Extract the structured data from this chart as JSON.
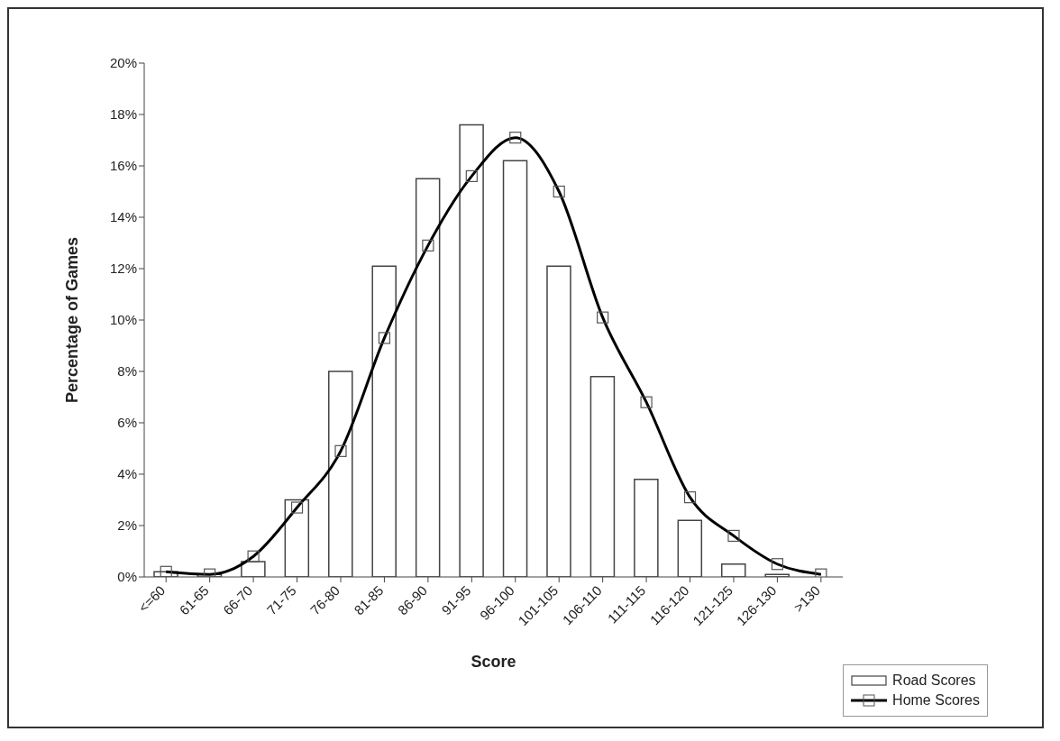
{
  "chart_data": {
    "type": "bar",
    "xlabel": "Score",
    "ylabel": "Percentage of Games",
    "categories": [
      "<=60",
      "61-65",
      "66-70",
      "71-75",
      "76-80",
      "81-85",
      "86-90",
      "91-95",
      "96-100",
      "101-105",
      "106-110",
      "111-115",
      "116-120",
      "121-125",
      "126-130",
      ">130"
    ],
    "series": [
      {
        "name": "Road Scores",
        "color": "#ffffff",
        "values": [
          0.2,
          0.1,
          0.6,
          3.0,
          8.0,
          12.1,
          15.5,
          17.6,
          16.2,
          12.1,
          7.8,
          3.8,
          2.2,
          0.5,
          0.1,
          0.0
        ]
      },
      {
        "name": "Home Scores",
        "type": "line",
        "color": "#000000",
        "marker": "square",
        "values": [
          0.2,
          0.1,
          0.8,
          2.7,
          4.9,
          9.3,
          12.9,
          15.6,
          17.1,
          15.0,
          10.1,
          6.8,
          3.1,
          1.6,
          0.5,
          0.1
        ]
      }
    ],
    "ylim": [
      0,
      20
    ],
    "yticks": [
      {
        "value": 0,
        "label": "0%"
      },
      {
        "value": 2,
        "label": "2%"
      },
      {
        "value": 4,
        "label": "4%"
      },
      {
        "value": 6,
        "label": "6%"
      },
      {
        "value": 8,
        "label": "8%"
      },
      {
        "value": 10,
        "label": "10%"
      },
      {
        "value": 12,
        "label": "12%"
      },
      {
        "value": 14,
        "label": "14%"
      },
      {
        "value": 16,
        "label": "16%"
      },
      {
        "value": 18,
        "label": "18%"
      },
      {
        "value": 20,
        "label": "20%"
      }
    ],
    "grid": false,
    "legend": "bottom right",
    "line_style": "solid"
  }
}
